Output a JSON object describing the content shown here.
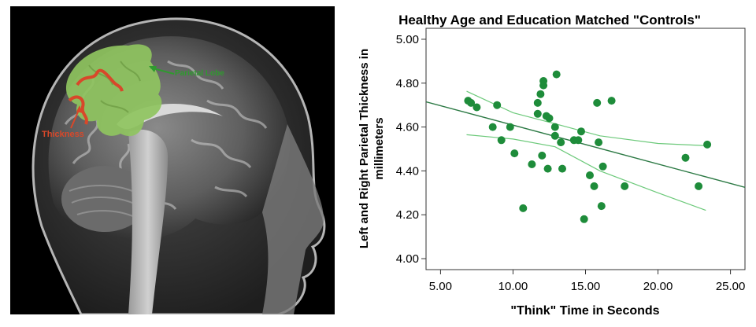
{
  "image_panel": {
    "label_parietal": "Parietal Lobe",
    "label_thickness": "Thickness",
    "colors": {
      "parietal_fill": "#8fc460",
      "thickness_line": "#d8482a",
      "label_green": "#2f9a2f",
      "label_red": "#d8482a"
    }
  },
  "chart_data": {
    "type": "scatter",
    "title": "Healthy Age and Education Matched \"Controls\"",
    "xlabel": "\"Think\" Time in Seconds",
    "ylabel_line1": "Left and Right Parietal Thickness in",
    "ylabel_line2": "millimeters",
    "xlim": [
      4.0,
      26.0
    ],
    "ylim": [
      3.95,
      5.05
    ],
    "xticks": [
      5,
      10,
      15,
      20,
      25
    ],
    "xtick_labels": [
      "5.00",
      "10.00",
      "15.00",
      "20.00",
      "25.00"
    ],
    "yticks": [
      4.0,
      4.2,
      4.4,
      4.6,
      4.8,
      5.0
    ],
    "ytick_labels": [
      "4.00",
      "4.20",
      "4.40",
      "4.60",
      "4.80",
      "5.00"
    ],
    "grid": false,
    "point_color": "#1e8c3a",
    "line_color": "#2d7a45",
    "ci_color": "#6cc97a",
    "points": [
      [
        6.9,
        4.72
      ],
      [
        7.1,
        4.71
      ],
      [
        7.5,
        4.69
      ],
      [
        8.6,
        4.6
      ],
      [
        8.9,
        4.7
      ],
      [
        9.2,
        4.54
      ],
      [
        9.8,
        4.6
      ],
      [
        10.1,
        4.48
      ],
      [
        10.7,
        4.23
      ],
      [
        11.3,
        4.43
      ],
      [
        11.7,
        4.66
      ],
      [
        11.7,
        4.71
      ],
      [
        11.9,
        4.75
      ],
      [
        12.0,
        4.47
      ],
      [
        12.1,
        4.79
      ],
      [
        12.1,
        4.81
      ],
      [
        12.3,
        4.65
      ],
      [
        12.4,
        4.41
      ],
      [
        12.5,
        4.64
      ],
      [
        12.9,
        4.6
      ],
      [
        12.9,
        4.56
      ],
      [
        13.0,
        4.84
      ],
      [
        13.3,
        4.53
      ],
      [
        13.4,
        4.41
      ],
      [
        14.2,
        4.54
      ],
      [
        14.5,
        4.54
      ],
      [
        14.7,
        4.58
      ],
      [
        14.9,
        4.18
      ],
      [
        15.3,
        4.38
      ],
      [
        15.6,
        4.33
      ],
      [
        15.8,
        4.71
      ],
      [
        15.9,
        4.53
      ],
      [
        16.1,
        4.24
      ],
      [
        16.2,
        4.42
      ],
      [
        16.8,
        4.72
      ],
      [
        17.7,
        4.33
      ],
      [
        21.9,
        4.46
      ],
      [
        22.8,
        4.33
      ],
      [
        23.4,
        4.52
      ]
    ],
    "fit_line": [
      [
        4.0,
        4.715
      ],
      [
        26.0,
        4.325
      ]
    ],
    "ci_upper": [
      [
        6.8,
        4.763
      ],
      [
        10.0,
        4.665
      ],
      [
        12.9,
        4.615
      ],
      [
        16.0,
        4.56
      ],
      [
        20.0,
        4.525
      ],
      [
        23.3,
        4.515
      ]
    ],
    "ci_lower": [
      [
        6.8,
        4.565
      ],
      [
        10.0,
        4.545
      ],
      [
        12.9,
        4.51
      ],
      [
        16.0,
        4.4
      ],
      [
        20.0,
        4.3
      ],
      [
        23.3,
        4.22
      ]
    ]
  }
}
